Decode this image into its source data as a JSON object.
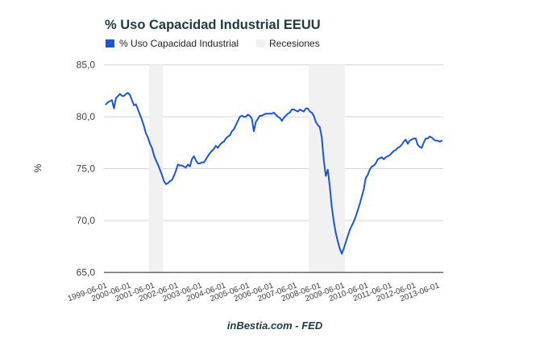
{
  "chart_data": {
    "type": "line",
    "title": "% Uso Capacidad Industrial EEUU",
    "xlabel": "",
    "ylabel": "%",
    "ylim": [
      65,
      85
    ],
    "yticks": [
      65,
      70,
      75,
      80,
      85
    ],
    "ytick_labels": [
      "65,0",
      "70,0",
      "75,0",
      "80,0",
      "85,0"
    ],
    "grid": true,
    "legend_position": "top-left",
    "legend": [
      {
        "label": "% Uso Capacidad Industrial",
        "color": "#1c55d0"
      },
      {
        "label": "Recesiones",
        "color": "#f1f1f1"
      }
    ],
    "xtick_labels": [
      "1999-06-01",
      "2000-06-01",
      "2001-06-01",
      "2002-06-01",
      "2003-06-01",
      "2004-06-01",
      "2005-06-01",
      "2006-06-01",
      "2007-06-01",
      "2008-06-01",
      "2009-06-01",
      "2010-06-01",
      "2011-06-01",
      "2012-06-01",
      "2013-06-01"
    ],
    "x": [
      "1999-06-01",
      "1999-07-01",
      "1999-08-01",
      "1999-09-01",
      "1999-10-01",
      "1999-11-01",
      "1999-12-01",
      "2000-01-01",
      "2000-02-01",
      "2000-03-01",
      "2000-04-01",
      "2000-05-01",
      "2000-06-01",
      "2000-07-01",
      "2000-08-01",
      "2000-09-01",
      "2000-10-01",
      "2000-11-01",
      "2000-12-01",
      "2001-01-01",
      "2001-02-01",
      "2001-03-01",
      "2001-04-01",
      "2001-05-01",
      "2001-06-01",
      "2001-07-01",
      "2001-08-01",
      "2001-09-01",
      "2001-10-01",
      "2001-11-01",
      "2001-12-01",
      "2002-01-01",
      "2002-02-01",
      "2002-03-01",
      "2002-04-01",
      "2002-05-01",
      "2002-06-01",
      "2002-07-01",
      "2002-08-01",
      "2002-09-01",
      "2002-10-01",
      "2002-11-01",
      "2002-12-01",
      "2003-01-01",
      "2003-02-01",
      "2003-03-01",
      "2003-04-01",
      "2003-05-01",
      "2003-06-01",
      "2003-07-01",
      "2003-08-01",
      "2003-09-01",
      "2003-10-01",
      "2003-11-01",
      "2003-12-01",
      "2004-01-01",
      "2004-02-01",
      "2004-03-01",
      "2004-04-01",
      "2004-05-01",
      "2004-06-01",
      "2004-07-01",
      "2004-08-01",
      "2004-09-01",
      "2004-10-01",
      "2004-11-01",
      "2004-12-01",
      "2005-01-01",
      "2005-02-01",
      "2005-03-01",
      "2005-04-01",
      "2005-05-01",
      "2005-06-01",
      "2005-07-01",
      "2005-08-01",
      "2005-09-01",
      "2005-10-01",
      "2005-11-01",
      "2005-12-01",
      "2006-01-01",
      "2006-02-01",
      "2006-03-01",
      "2006-04-01",
      "2006-05-01",
      "2006-06-01",
      "2006-07-01",
      "2006-08-01",
      "2006-09-01",
      "2006-10-01",
      "2006-11-01",
      "2006-12-01",
      "2007-01-01",
      "2007-02-01",
      "2007-03-01",
      "2007-04-01",
      "2007-05-01",
      "2007-06-01",
      "2007-07-01",
      "2007-08-01",
      "2007-09-01",
      "2007-10-01",
      "2007-11-01",
      "2007-12-01",
      "2008-01-01",
      "2008-02-01",
      "2008-03-01",
      "2008-04-01",
      "2008-05-01",
      "2008-06-01",
      "2008-07-01",
      "2008-08-01",
      "2008-09-01",
      "2008-10-01",
      "2008-11-01",
      "2008-12-01",
      "2009-01-01",
      "2009-02-01",
      "2009-03-01",
      "2009-04-01",
      "2009-05-01",
      "2009-06-01",
      "2009-07-01",
      "2009-08-01",
      "2009-09-01",
      "2009-10-01",
      "2009-11-01",
      "2009-12-01",
      "2010-01-01",
      "2010-02-01",
      "2010-03-01",
      "2010-04-01",
      "2010-05-01",
      "2010-06-01",
      "2010-07-01",
      "2010-08-01",
      "2010-09-01",
      "2010-10-01",
      "2010-11-01",
      "2010-12-01",
      "2011-01-01",
      "2011-02-01",
      "2011-03-01",
      "2011-04-01",
      "2011-05-01",
      "2011-06-01",
      "2011-07-01",
      "2011-08-01",
      "2011-09-01",
      "2011-10-01",
      "2011-11-01",
      "2011-12-01",
      "2012-01-01",
      "2012-02-01",
      "2012-03-01",
      "2012-04-01",
      "2012-05-01",
      "2012-06-01",
      "2012-07-01",
      "2012-08-01",
      "2012-09-01",
      "2012-10-01",
      "2012-11-01",
      "2012-12-01",
      "2013-01-01",
      "2013-02-01",
      "2013-03-01",
      "2013-04-01",
      "2013-05-01",
      "2013-06-01"
    ],
    "series": [
      {
        "name": "% Uso Capacidad Industrial",
        "color": "#1c55d0",
        "values": [
          81.2,
          81.4,
          81.5,
          81.6,
          80.8,
          81.8,
          82.0,
          82.2,
          82.0,
          82.0,
          82.2,
          82.3,
          82.1,
          81.6,
          81.1,
          81.2,
          80.7,
          80.2,
          79.7,
          79.1,
          78.4,
          78.0,
          77.4,
          77.0,
          76.3,
          75.8,
          75.4,
          74.9,
          74.4,
          73.8,
          73.5,
          73.6,
          73.8,
          73.9,
          74.3,
          74.8,
          75.4,
          75.3,
          75.3,
          75.2,
          75.1,
          75.4,
          75.2,
          75.9,
          76.2,
          75.8,
          75.5,
          75.5,
          75.6,
          75.6,
          75.9,
          76.2,
          76.5,
          76.7,
          76.9,
          77.2,
          77.0,
          77.3,
          77.5,
          77.6,
          77.9,
          78.1,
          78.2,
          78.6,
          78.8,
          79.2,
          79.6,
          80.0,
          80.1,
          80.0,
          80.0,
          80.2,
          80.1,
          79.8,
          78.6,
          79.5,
          79.8,
          80.1,
          80.1,
          80.2,
          80.3,
          80.3,
          80.3,
          80.3,
          80.4,
          80.2,
          80.0,
          79.9,
          79.6,
          79.9,
          80.1,
          80.3,
          80.4,
          80.7,
          80.7,
          80.6,
          80.5,
          80.7,
          80.6,
          80.5,
          80.8,
          80.8,
          80.5,
          80.4,
          80.1,
          79.5,
          79.2,
          79.0,
          78.0,
          75.8,
          74.3,
          74.9,
          73.3,
          71.3,
          69.9,
          68.8,
          68.0,
          67.3,
          66.8,
          67.3,
          67.9,
          68.5,
          69.1,
          69.5,
          69.9,
          70.4,
          71.0,
          71.6,
          72.3,
          73.0,
          74.1,
          74.4,
          74.9,
          75.2,
          75.3,
          75.5,
          75.9,
          76.0,
          76.1,
          75.9,
          76.1,
          76.2,
          76.3,
          76.5,
          76.7,
          76.8,
          77.0,
          77.1,
          77.3,
          77.6,
          77.8,
          77.4,
          77.7,
          77.8,
          77.9,
          77.9,
          77.3,
          77.1,
          77.0,
          77.5,
          77.9,
          77.9,
          78.1,
          78.0,
          77.8,
          77.7,
          77.7,
          77.6,
          77.7
        ]
      }
    ],
    "recessions": [
      {
        "start": "2001-04-01",
        "end": "2001-10-01"
      },
      {
        "start": "2007-12-01",
        "end": "2009-05-01"
      }
    ],
    "footer": "inBestia.com - FED"
  }
}
